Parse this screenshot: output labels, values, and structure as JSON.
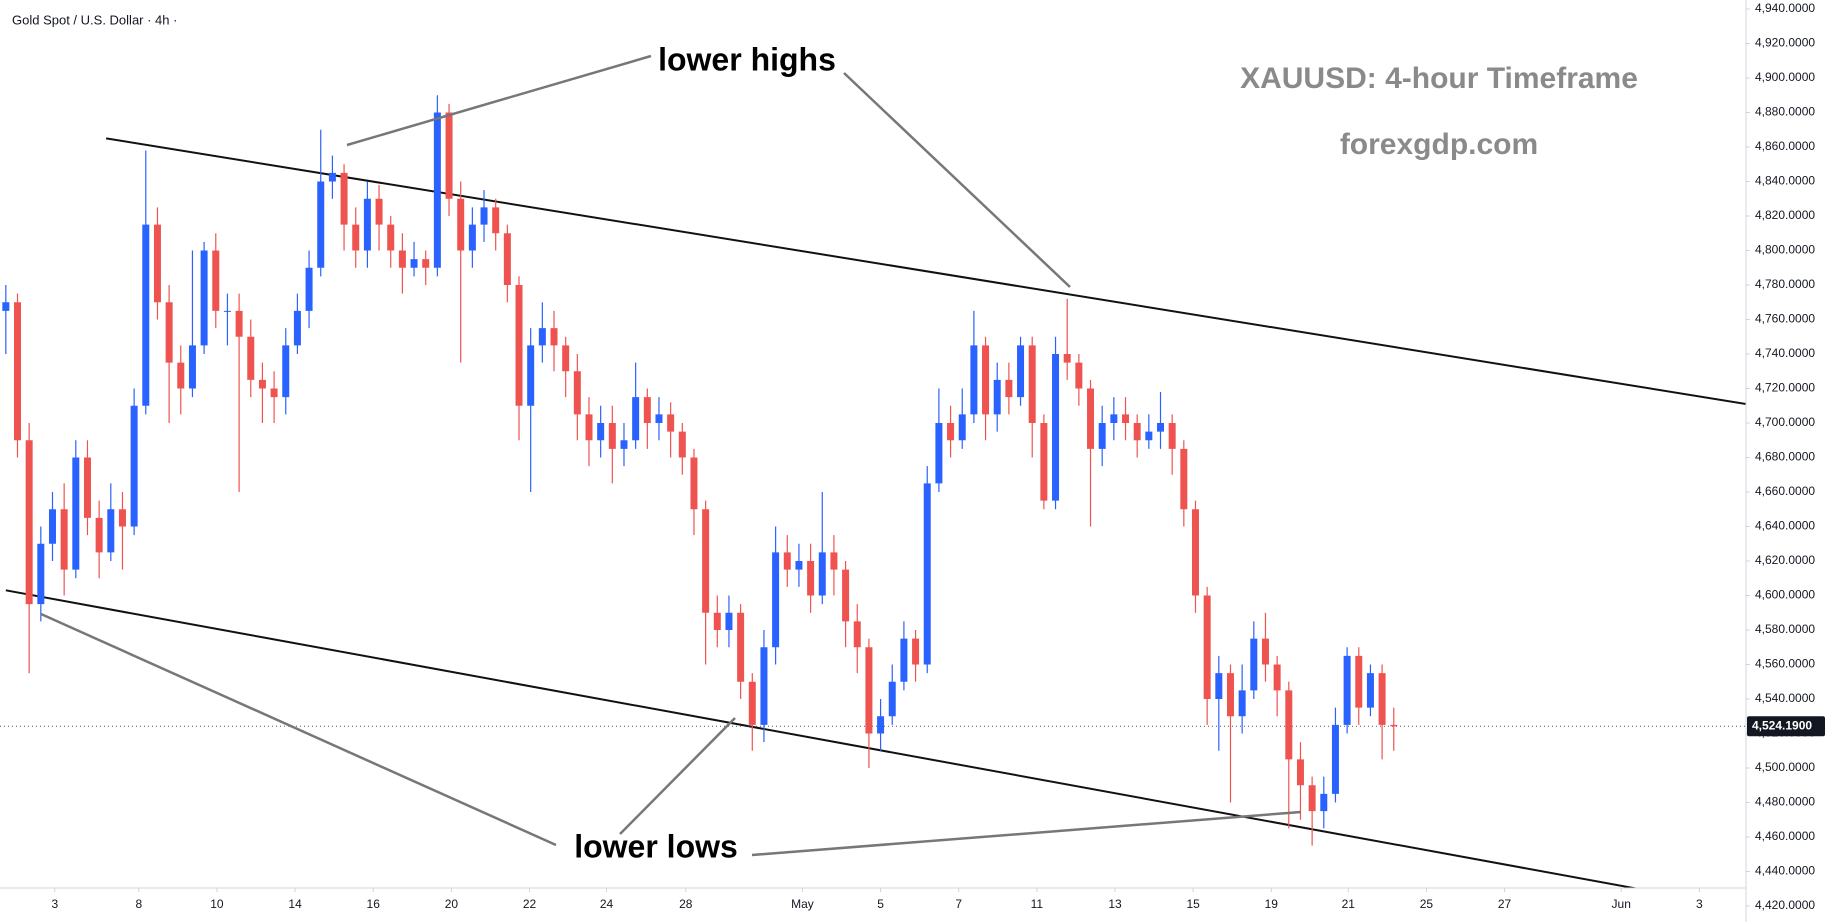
{
  "chart_data": {
    "type": "candlestick",
    "symbol_label": "Gold Spot / U.S. Dollar · 4h ·",
    "title": "XAUUSD: 4-hour Timeframe",
    "subtitle": "forexgdp.com",
    "annotations": [
      "lower highs",
      "lower lows"
    ],
    "up_color": "#2962ff",
    "down_color": "#ef5350",
    "open": [
      4765,
      4770,
      4690,
      4595,
      4630,
      4650,
      4615,
      4680,
      4645,
      4625,
      4650,
      4640,
      4710,
      4815,
      4770,
      4735,
      4720,
      4745,
      4800,
      4765,
      4765,
      4750,
      4725,
      4720,
      4715,
      4745,
      4765,
      4790,
      4840,
      4845,
      4815,
      4800,
      4830,
      4815,
      4800,
      4790,
      4795,
      4790,
      4880,
      4830,
      4800,
      4815,
      4825,
      4810,
      4780,
      4710,
      4745,
      4755,
      4745,
      4730,
      4705,
      4690,
      4700,
      4685,
      4690,
      4715,
      4700,
      4705,
      4695,
      4680,
      4650,
      4590,
      4580,
      4590,
      4550,
      4525,
      4570,
      4625,
      4615,
      4620,
      4600,
      4625,
      4615,
      4585,
      4570,
      4520,
      4530,
      4550,
      4575,
      4560,
      4665,
      4700,
      4690,
      4705,
      4745,
      4705,
      4725,
      4715,
      4745,
      4700,
      4655,
      4740,
      4735,
      4720,
      4685,
      4700,
      4705,
      4700,
      4690,
      4695,
      4700,
      4685,
      4650,
      4600,
      4540,
      4555,
      4530,
      4545,
      4575,
      4560,
      4545,
      4505,
      4490,
      4475,
      4485,
      4525,
      4565,
      4535,
      4555,
      4525
    ],
    "high": [
      4780,
      4775,
      4700,
      4640,
      4660,
      4665,
      4690,
      4690,
      4655,
      4665,
      4660,
      4720,
      4858,
      4825,
      4780,
      4745,
      4800,
      4805,
      4810,
      4775,
      4775,
      4760,
      4735,
      4730,
      4755,
      4775,
      4800,
      4870,
      4855,
      4850,
      4825,
      4840,
      4838,
      4820,
      4810,
      4805,
      4800,
      4890,
      4885,
      4840,
      4825,
      4835,
      4830,
      4815,
      4785,
      4755,
      4770,
      4765,
      4750,
      4740,
      4715,
      4710,
      4710,
      4700,
      4735,
      4720,
      4715,
      4712,
      4700,
      4685,
      4655,
      4600,
      4600,
      4595,
      4555,
      4580,
      4640,
      4635,
      4630,
      4630,
      4660,
      4635,
      4620,
      4595,
      4575,
      4540,
      4560,
      4585,
      4580,
      4675,
      4720,
      4710,
      4720,
      4765,
      4750,
      4735,
      4735,
      4750,
      4750,
      4705,
      4750,
      4772,
      4740,
      4725,
      4710,
      4715,
      4715,
      4705,
      4705,
      4718,
      4705,
      4690,
      4655,
      4605,
      4565,
      4560,
      4560,
      4585,
      4590,
      4565,
      4550,
      4515,
      4495,
      4495,
      4535,
      4570,
      4570,
      4560,
      4560,
      4535
    ],
    "low": [
      4740,
      4680,
      4555,
      4585,
      4620,
      4600,
      4610,
      4635,
      4610,
      4620,
      4615,
      4635,
      4705,
      4760,
      4700,
      4705,
      4715,
      4740,
      4755,
      4745,
      4660,
      4715,
      4700,
      4700,
      4705,
      4740,
      4755,
      4785,
      4830,
      4800,
      4790,
      4790,
      4800,
      4790,
      4775,
      4785,
      4780,
      4785,
      4820,
      4735,
      4790,
      4805,
      4800,
      4770,
      4690,
      4660,
      4735,
      4730,
      4715,
      4690,
      4675,
      4680,
      4665,
      4675,
      4685,
      4685,
      4690,
      4680,
      4670,
      4635,
      4560,
      4570,
      4570,
      4540,
      4510,
      4515,
      4560,
      4605,
      4605,
      4590,
      4595,
      4600,
      4570,
      4555,
      4500,
      4510,
      4525,
      4545,
      4550,
      4555,
      4660,
      4680,
      4685,
      4700,
      4690,
      4695,
      4705,
      4710,
      4680,
      4650,
      4650,
      4725,
      4710,
      4640,
      4675,
      4690,
      4690,
      4680,
      4685,
      4685,
      4670,
      4640,
      4590,
      4525,
      4510,
      4480,
      4520,
      4540,
      4550,
      4530,
      4465,
      4470,
      4455,
      4465,
      4480,
      4520,
      4525,
      4530,
      4505,
      4510
    ],
    "close": [
      4770,
      4690,
      4595,
      4630,
      4650,
      4615,
      4680,
      4645,
      4625,
      4650,
      4640,
      4710,
      4815,
      4770,
      4735,
      4720,
      4745,
      4800,
      4765,
      4765,
      4750,
      4725,
      4720,
      4715,
      4745,
      4765,
      4790,
      4840,
      4845,
      4815,
      4800,
      4830,
      4815,
      4800,
      4790,
      4795,
      4790,
      4880,
      4830,
      4800,
      4815,
      4825,
      4810,
      4780,
      4710,
      4745,
      4755,
      4745,
      4730,
      4705,
      4690,
      4700,
      4685,
      4690,
      4715,
      4700,
      4705,
      4695,
      4680,
      4650,
      4590,
      4580,
      4590,
      4550,
      4525,
      4570,
      4625,
      4615,
      4620,
      4600,
      4625,
      4615,
      4585,
      4570,
      4520,
      4530,
      4550,
      4575,
      4560,
      4665,
      4700,
      4690,
      4705,
      4745,
      4705,
      4725,
      4715,
      4745,
      4700,
      4655,
      4740,
      4735,
      4720,
      4685,
      4700,
      4705,
      4700,
      4690,
      4695,
      4700,
      4685,
      4650,
      4600,
      4540,
      4555,
      4530,
      4545,
      4575,
      4560,
      4545,
      4505,
      4490,
      4475,
      4485,
      4525,
      4565,
      4535,
      4555,
      4525,
      4524.19
    ],
    "last_price": {
      "value": 4524.19,
      "label": "4,524.1900"
    },
    "trendlines": [
      [
        [
          8.6,
          4865
        ],
        [
          149.2,
          4711
        ]
      ],
      [
        [
          0,
          4603
        ],
        [
          141.5,
          4428
        ]
      ]
    ],
    "xlim": [
      -0.5,
      149.2
    ],
    "xticks": [
      {
        "value": 4.2,
        "label": "3"
      },
      {
        "value": 11.4,
        "label": "8"
      },
      {
        "value": 18.1,
        "label": "10"
      },
      {
        "value": 24.8,
        "label": "14"
      },
      {
        "value": 31.5,
        "label": "16"
      },
      {
        "value": 38.2,
        "label": "20"
      },
      {
        "value": 44.9,
        "label": "22"
      },
      {
        "value": 51.5,
        "label": "24"
      },
      {
        "value": 58.3,
        "label": "28"
      },
      {
        "value": 68.3,
        "label": "May"
      },
      {
        "value": 75,
        "label": "5"
      },
      {
        "value": 81.7,
        "label": "7"
      },
      {
        "value": 88.4,
        "label": "11"
      },
      {
        "value": 95.1,
        "label": "13"
      },
      {
        "value": 101.8,
        "label": "15"
      },
      {
        "value": 108.5,
        "label": "19"
      },
      {
        "value": 115.1,
        "label": "21"
      },
      {
        "value": 121.8,
        "label": "25"
      },
      {
        "value": 128.5,
        "label": "27"
      },
      {
        "value": 138.5,
        "label": "Jun"
      },
      {
        "value": 145.2,
        "label": "3"
      }
    ],
    "ylim": [
      4420,
      4940
    ],
    "yticks": [
      {
        "value": 4420,
        "label": "4,420.0000"
      },
      {
        "value": 4440,
        "label": "4,440.0000"
      },
      {
        "value": 4460,
        "label": "4,460.0000"
      },
      {
        "value": 4480,
        "label": "4,480.0000"
      },
      {
        "value": 4500,
        "label": "4,500.0000"
      },
      {
        "value": 4520,
        "label": "4,520.0000"
      },
      {
        "value": 4540,
        "label": "4,540.0000"
      },
      {
        "value": 4560,
        "label": "4,560.0000"
      },
      {
        "value": 4580,
        "label": "4,580.0000"
      },
      {
        "value": 4600,
        "label": "4,600.0000"
      },
      {
        "value": 4620,
        "label": "4,620.0000"
      },
      {
        "value": 4640,
        "label": "4,640.0000"
      },
      {
        "value": 4660,
        "label": "4,660.0000"
      },
      {
        "value": 4680,
        "label": "4,680.0000"
      },
      {
        "value": 4700,
        "label": "4,700.0000"
      },
      {
        "value": 4720,
        "label": "4,720.0000"
      },
      {
        "value": 4740,
        "label": "4,740.0000"
      },
      {
        "value": 4760,
        "label": "4,760.0000"
      },
      {
        "value": 4780,
        "label": "4,780.0000"
      },
      {
        "value": 4800,
        "label": "4,800.0000"
      },
      {
        "value": 4820,
        "label": "4,820.0000"
      },
      {
        "value": 4840,
        "label": "4,840.0000"
      },
      {
        "value": 4860,
        "label": "4,860.0000"
      },
      {
        "value": 4880,
        "label": "4,880.0000"
      },
      {
        "value": 4900,
        "label": "4,900.0000"
      },
      {
        "value": 4920,
        "label": "4,920.0000"
      },
      {
        "value": 4940,
        "label": "4,940.0000"
      }
    ]
  }
}
